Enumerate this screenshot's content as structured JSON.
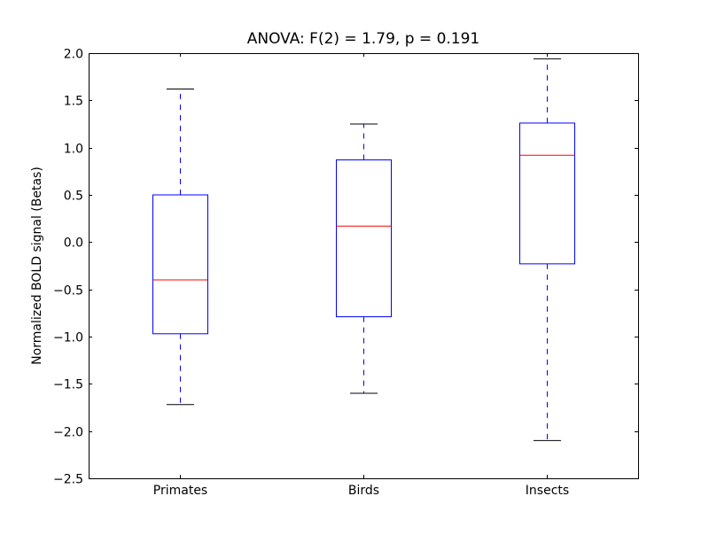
{
  "chart_data": {
    "type": "box",
    "title": "ANOVA: F(2) = 1.79, p = 0.191",
    "xlabel": "",
    "ylabel": "Normalized BOLD signal (Betas)",
    "ylim": [
      -2.5,
      2.0
    ],
    "yticks": [
      -2.5,
      -2.0,
      -1.5,
      -1.0,
      -0.5,
      0.0,
      0.5,
      1.0,
      1.5,
      2.0
    ],
    "ytick_labels": [
      "−2.5",
      "−2.0",
      "−1.5",
      "−1.0",
      "−0.5",
      "0.0",
      "0.5",
      "1.0",
      "1.5",
      "2.0"
    ],
    "categories": [
      "Primates",
      "Birds",
      "Insects"
    ],
    "boxes": [
      {
        "whisker_low": -1.72,
        "q1": -0.97,
        "median": -0.4,
        "q3": 0.5,
        "whisker_high": 1.62
      },
      {
        "whisker_low": -1.6,
        "q1": -0.79,
        "median": 0.17,
        "q3": 0.87,
        "whisker_high": 1.25
      },
      {
        "whisker_low": -2.1,
        "q1": -0.23,
        "median": 0.92,
        "q3": 1.26,
        "whisker_high": 1.94
      }
    ],
    "grid": false,
    "colors": {
      "box": "#0000ff",
      "median": "#ff0000",
      "whisker": "#0000ff",
      "cap": "#000000"
    }
  }
}
